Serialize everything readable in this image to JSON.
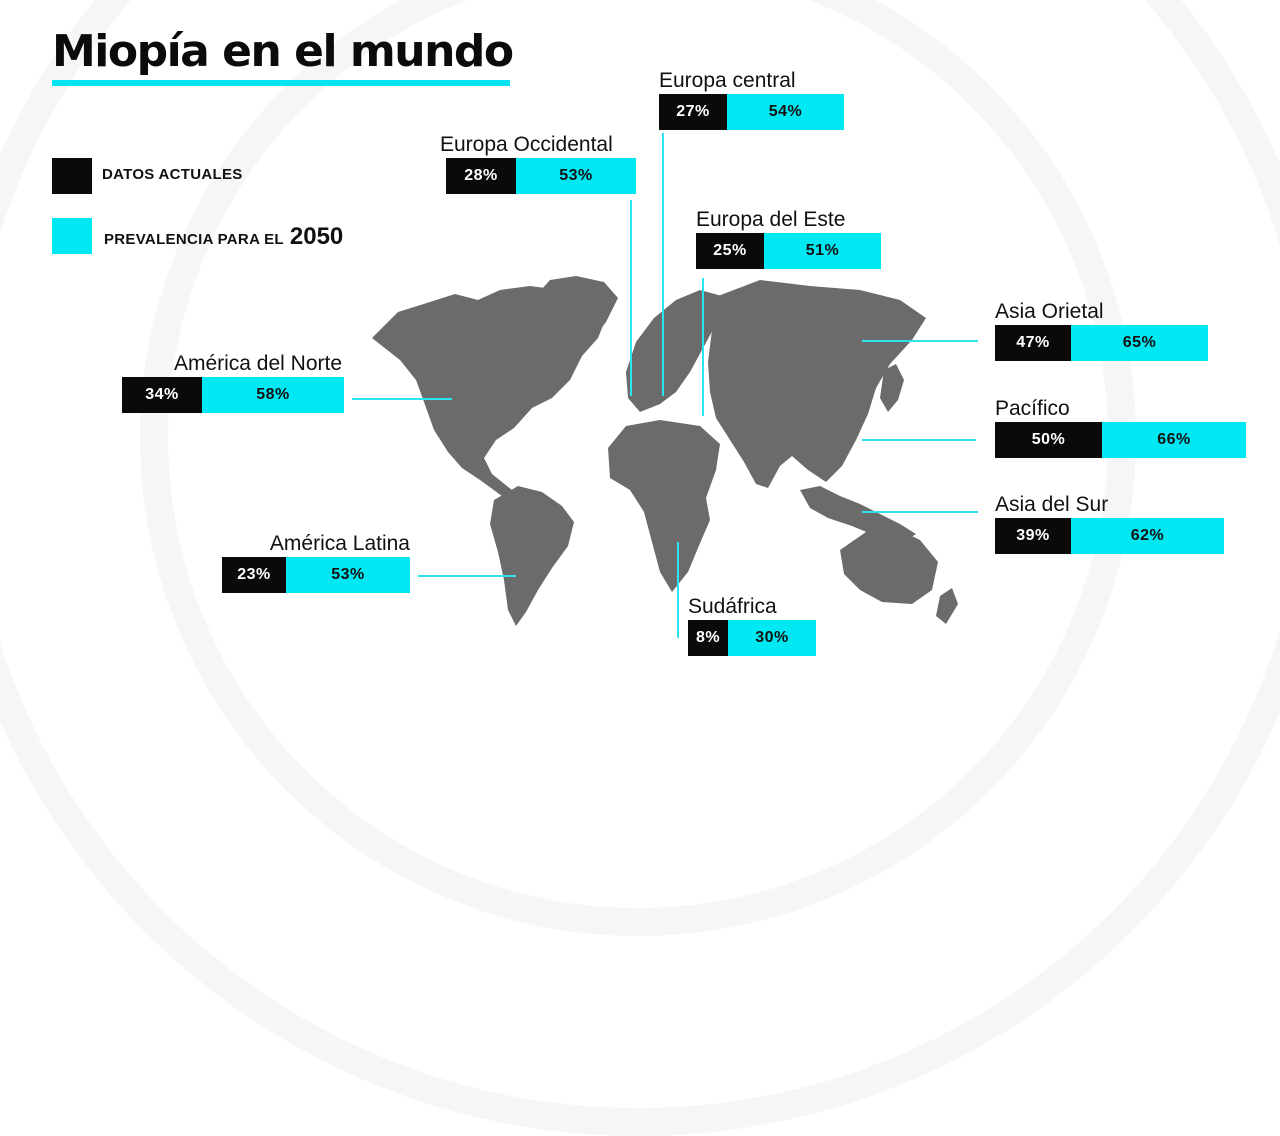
{
  "title": "Miopía en el mundo",
  "legend": {
    "current_label": "DATOS ACTUALES",
    "future_label": "PREVALENCIA PARA EL",
    "future_year": "2050"
  },
  "colors": {
    "current": "#0a0a0a",
    "future": "#00e8f2",
    "map": "#6b6b6b",
    "accent": "#00e5f1"
  },
  "chart_data": {
    "type": "bar",
    "orientation": "horizontal-stacked-labels",
    "title": "Miopía en el mundo",
    "unit": "%",
    "series": [
      {
        "name": "DATOS ACTUALES",
        "values": [
          34,
          23,
          28,
          27,
          25,
          8,
          47,
          50,
          39
        ]
      },
      {
        "name": "PREVALENCIA PARA EL 2050",
        "values": [
          58,
          53,
          53,
          54,
          51,
          30,
          65,
          66,
          62
        ]
      }
    ],
    "categories": [
      "América del Norte",
      "América Latina",
      "Europa Occidental",
      "Europa central",
      "Europa del Este",
      "Sudáfrica",
      "Asia Orietal",
      "Pacífico",
      "Asia del Sur"
    ]
  },
  "regions": [
    {
      "name": "América del Norte",
      "current": "34%",
      "future": "58%"
    },
    {
      "name": "América Latina",
      "current": "23%",
      "future": "53%"
    },
    {
      "name": "Europa Occidental",
      "current": "28%",
      "future": "53%"
    },
    {
      "name": "Europa central",
      "current": "27%",
      "future": "54%"
    },
    {
      "name": "Europa del Este",
      "current": "25%",
      "future": "51%"
    },
    {
      "name": "Sudáfrica",
      "current": "8%",
      "future": "30%"
    },
    {
      "name": "Asia Orietal",
      "current": "47%",
      "future": "65%"
    },
    {
      "name": "Pacífico",
      "current": "50%",
      "future": "66%"
    },
    {
      "name": "Asia del Sur",
      "current": "39%",
      "future": "62%"
    }
  ]
}
